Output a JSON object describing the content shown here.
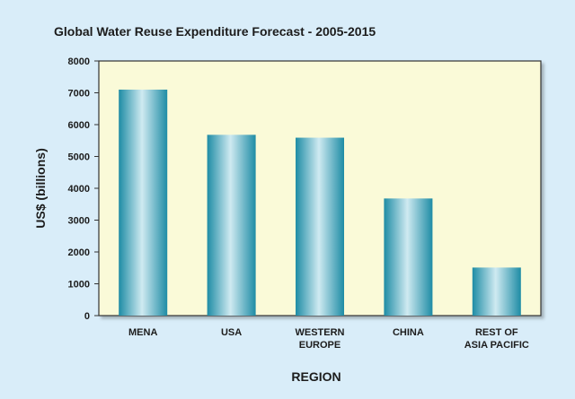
{
  "chart_data": {
    "type": "bar",
    "title": "Global Water Reuse Expenditure Forecast - 2005-2015",
    "xlabel": "REGION",
    "ylabel": "US$ (billions)",
    "categories": [
      [
        "MENA"
      ],
      [
        "USA"
      ],
      [
        "WESTERN",
        "EUROPE"
      ],
      [
        "CHINA"
      ],
      [
        "REST OF",
        "ASIA PACIFIC"
      ]
    ],
    "values": [
      7100,
      5680,
      5590,
      3680,
      1510
    ],
    "ylim": [
      0,
      8000
    ],
    "yticks": [
      "0",
      "1000",
      "2000",
      "3000",
      "4000",
      "5000",
      "6000",
      "7000",
      "8000"
    ],
    "grid": false,
    "legend": "none",
    "colors": {
      "background": "#d9edf9",
      "plot_area": "#fafad8",
      "bar_dark": "#1e8ca5",
      "bar_light": "#cfeaf1",
      "axis": "#333333"
    }
  }
}
